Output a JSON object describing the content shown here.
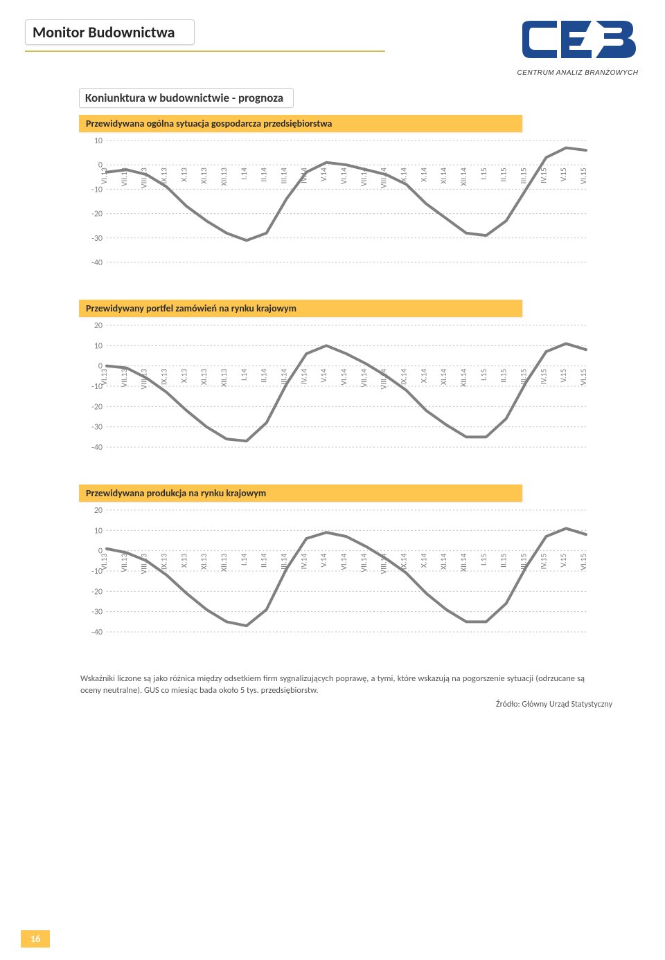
{
  "page_title": "Monitor Budownictwa",
  "section_title": "Koniunktura w budownictwie - prognoza",
  "logo_subtitle": "CENTRUM ANALIZ BRANŻOWYCH",
  "page_number": "16",
  "footnote": "Wskaźniki liczone są jako różnica między odsetkiem firm sygnalizujących poprawę, a tymi, które wskazują na pogorszenie sytuacji (odrzucane są oceny neutralne). GUS co miesiąc bada około 5 tys. przedsiębiorstw.",
  "source": "Źródło: Główny Urząd Statystyczny",
  "x_labels": [
    "VI.13",
    "VII.13",
    "VIII.13",
    "IX.13",
    "X.13",
    "XI.13",
    "XII.13",
    "I.14",
    "II.14",
    "III.14",
    "IV.14",
    "V.14",
    "VI.14",
    "VII.14",
    "VIII.14",
    "IX.14",
    "X.14",
    "XI.14",
    "XII.14",
    "I.15",
    "II.15",
    "III.15",
    "IV.15",
    "V.15",
    "VI.15"
  ],
  "charts": [
    {
      "title": "Przewidywana ogólna sytuacja gospodarcza przedsiębiorstwa",
      "y_ticks": [
        10,
        0,
        -10,
        -20,
        -30,
        -40
      ],
      "ylim": [
        -40,
        10
      ],
      "values": [
        -3,
        -2,
        -4,
        -9,
        -17,
        -23,
        -28,
        -31,
        -28,
        -14,
        -3,
        1,
        0,
        -2,
        -4,
        -8,
        -16,
        -22,
        -28,
        -29,
        -23,
        -10,
        3,
        7,
        6
      ],
      "line_color": "#808080",
      "line_width": 4,
      "grid_color": "#bfbfbf",
      "label_color": "#808080",
      "label_fontsize": 12,
      "label_rotation": -90
    },
    {
      "title": "Przewidywany portfel zamówień na rynku krajowym",
      "y_ticks": [
        20,
        10,
        0,
        -10,
        -20,
        -30,
        -40
      ],
      "ylim": [
        -40,
        20
      ],
      "values": [
        0,
        -1,
        -6,
        -13,
        -22,
        -30,
        -36,
        -37,
        -28,
        -9,
        6,
        10,
        6,
        1,
        -5,
        -12,
        -22,
        -29,
        -35,
        -35,
        -26,
        -8,
        7,
        11,
        8
      ],
      "line_color": "#808080",
      "line_width": 4,
      "grid_color": "#bfbfbf",
      "label_color": "#808080",
      "label_fontsize": 12,
      "label_rotation": -90
    },
    {
      "title": "Przewidywana produkcja na rynku krajowym",
      "y_ticks": [
        20,
        10,
        0,
        -10,
        -20,
        -30,
        -40
      ],
      "ylim": [
        -40,
        20
      ],
      "values": [
        1,
        -1,
        -5,
        -12,
        -21,
        -29,
        -35,
        -37,
        -29,
        -9,
        6,
        9,
        7,
        2,
        -4,
        -11,
        -21,
        -29,
        -35,
        -35,
        -26,
        -8,
        7,
        11,
        8
      ],
      "line_color": "#808080",
      "line_width": 4,
      "grid_color": "#bfbfbf",
      "label_color": "#808080",
      "label_fontsize": 12,
      "label_rotation": -90
    }
  ],
  "logo_colors": {
    "blue": "#1e4b8f",
    "border": "#1e4b8f"
  }
}
